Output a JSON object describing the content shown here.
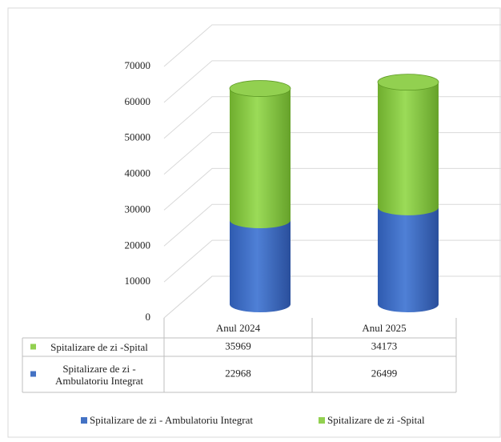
{
  "chart_data": {
    "type": "bar",
    "stacked": true,
    "style": "3d-cylinder",
    "categories": [
      "Anul 2024",
      "Anul 2025"
    ],
    "series": [
      {
        "name": "Spitalizare de zi - Ambulatoriu Integrat",
        "color": "#4472c4",
        "values": [
          22968,
          26499
        ]
      },
      {
        "name": "Spitalizare de zi -Spital",
        "color": "#92d050",
        "values": [
          35969,
          34173
        ]
      }
    ],
    "ylim": [
      0,
      70000
    ],
    "yticks": [
      0,
      10000,
      20000,
      30000,
      40000,
      50000,
      60000,
      70000
    ],
    "grid": true,
    "legend": "bottom",
    "data_table": true
  }
}
